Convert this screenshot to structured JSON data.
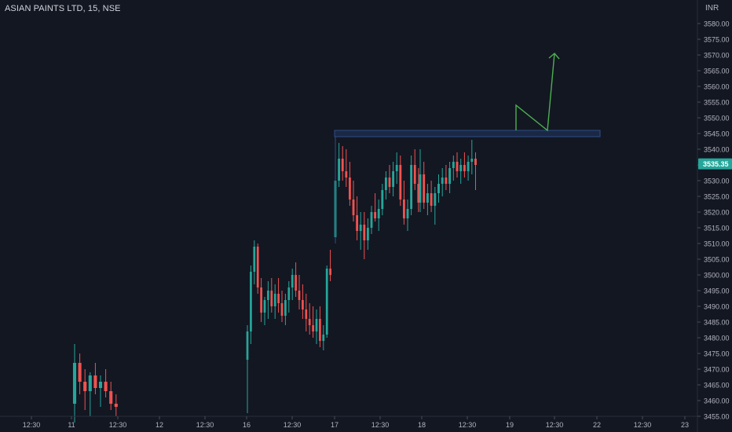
{
  "header": {
    "symbol": "ASIAN PAINTS LTD, 15, NSE",
    "currency": "INR"
  },
  "colors": {
    "background": "#131722",
    "up_candle": "#26a69a",
    "down_candle": "#ef5350",
    "zone_fill": "#1e2f52",
    "zone_border": "#2f4c85",
    "arrow": "#4caf50",
    "axis_text": "#b2b5be",
    "last_price_bg": "#26a69a"
  },
  "chart_data": {
    "type": "candlestick",
    "title": "ASIAN PAINTS LTD, 15, NSE",
    "ylabel": "INR",
    "ylim": [
      3453,
      3589
    ],
    "grid": false,
    "y_ticks": [
      "3455.00",
      "3460.00",
      "3465.00",
      "3470.00",
      "3475.00",
      "3480.00",
      "3485.00",
      "3490.00",
      "3495.00",
      "3500.00",
      "3505.00",
      "3510.00",
      "3515.00",
      "3520.00",
      "3525.00",
      "3530.00",
      "3535.00",
      "3540.00",
      "3545.00",
      "3550.00",
      "3555.00",
      "3560.00",
      "3565.00",
      "3570.00",
      "3575.00",
      "3580.00"
    ],
    "x_ticks": [
      "12:30",
      "11",
      "12:30",
      "12",
      "12:30",
      "16",
      "12:30",
      "17",
      "12:30",
      "18",
      "12:30",
      "19",
      "12:30",
      "22",
      "12:30",
      "23"
    ],
    "last_price": "3535.35",
    "zone": {
      "from": 3544,
      "to": 3546
    },
    "arrow_path": [
      [
        3545,
        3545
      ],
      [
        3545,
        3554
      ],
      [
        3545,
        3545
      ],
      [
        3570,
        3570
      ]
    ],
    "sessions": [
      {
        "day": "11",
        "candles": [
          [
            3459,
            3478,
            3453,
            3472
          ],
          [
            3472,
            3475,
            3462,
            3466
          ],
          [
            3466,
            3470,
            3457,
            3463
          ],
          [
            3463,
            3469,
            3455,
            3468
          ],
          [
            3468,
            3472,
            3462,
            3464
          ],
          [
            3464,
            3468,
            3458,
            3466
          ],
          [
            3466,
            3470,
            3461,
            3463
          ],
          [
            3463,
            3466,
            3457,
            3459
          ],
          [
            3459,
            3462,
            3455,
            3458
          ]
        ]
      },
      {
        "day": "16",
        "candles": [
          [
            3473,
            3484,
            3456,
            3482
          ],
          [
            3482,
            3503,
            3478,
            3501
          ],
          [
            3501,
            3511,
            3497,
            3509
          ],
          [
            3509,
            3510,
            3494,
            3496
          ],
          [
            3496,
            3499,
            3485,
            3488
          ],
          [
            3488,
            3493,
            3484,
            3492
          ],
          [
            3492,
            3498,
            3486,
            3495
          ],
          [
            3495,
            3499,
            3488,
            3490
          ],
          [
            3490,
            3497,
            3486,
            3494
          ],
          [
            3494,
            3499,
            3488,
            3491
          ],
          [
            3491,
            3495,
            3485,
            3487
          ],
          [
            3487,
            3494,
            3484,
            3492
          ],
          [
            3492,
            3498,
            3488,
            3496
          ],
          [
            3496,
            3502,
            3492,
            3500
          ],
          [
            3500,
            3504,
            3493,
            3495
          ],
          [
            3495,
            3500,
            3489,
            3492
          ],
          [
            3492,
            3497,
            3486,
            3489
          ],
          [
            3489,
            3494,
            3482,
            3486
          ],
          [
            3486,
            3491,
            3481,
            3484
          ],
          [
            3484,
            3490,
            3480,
            3482
          ],
          [
            3482,
            3489,
            3478,
            3486
          ],
          [
            3486,
            3490,
            3477,
            3479
          ],
          [
            3479,
            3484,
            3476,
            3481
          ],
          [
            3481,
            3503,
            3480,
            3502
          ],
          [
            3502,
            3508,
            3498,
            3500
          ]
        ]
      },
      {
        "day": "17",
        "candles": [
          [
            3512,
            3532,
            3510,
            3530
          ],
          [
            3530,
            3542,
            3528,
            3537
          ],
          [
            3537,
            3541,
            3530,
            3533
          ],
          [
            3533,
            3540,
            3528,
            3531
          ],
          [
            3531,
            3536,
            3522,
            3524
          ],
          [
            3524,
            3530,
            3517,
            3519
          ],
          [
            3519,
            3525,
            3511,
            3514
          ],
          [
            3514,
            3520,
            3508,
            3516
          ],
          [
            3516,
            3520,
            3505,
            3511
          ],
          [
            3511,
            3518,
            3508,
            3515
          ],
          [
            3515,
            3522,
            3513,
            3520
          ],
          [
            3520,
            3526,
            3517,
            3518
          ],
          [
            3518,
            3524,
            3514,
            3521
          ],
          [
            3521,
            3529,
            3519,
            3527
          ],
          [
            3527,
            3533,
            3524,
            3531
          ],
          [
            3531,
            3535,
            3526,
            3528
          ],
          [
            3528,
            3536,
            3525,
            3533
          ],
          [
            3533,
            3539,
            3529,
            3535
          ],
          [
            3535,
            3538,
            3522,
            3524
          ],
          [
            3524,
            3530,
            3516,
            3518
          ],
          [
            3518,
            3524,
            3514,
            3521
          ],
          [
            3521,
            3538,
            3519,
            3535
          ],
          [
            3535,
            3540,
            3527,
            3529
          ],
          [
            3529,
            3534,
            3520,
            3523
          ]
        ]
      },
      {
        "day": "18",
        "candles": [
          [
            3523,
            3540,
            3520,
            3532
          ],
          [
            3532,
            3536,
            3521,
            3523
          ],
          [
            3523,
            3529,
            3519,
            3526
          ],
          [
            3526,
            3530,
            3520,
            3522
          ],
          [
            3522,
            3528,
            3516,
            3526
          ],
          [
            3526,
            3532,
            3523,
            3529
          ],
          [
            3529,
            3534,
            3525,
            3531
          ],
          [
            3531,
            3535,
            3527,
            3529
          ],
          [
            3529,
            3536,
            3526,
            3534
          ],
          [
            3534,
            3538,
            3530,
            3536
          ],
          [
            3536,
            3539,
            3531,
            3533
          ],
          [
            3533,
            3537,
            3529,
            3535
          ],
          [
            3535,
            3539,
            3531,
            3533
          ],
          [
            3533,
            3538,
            3530,
            3536
          ],
          [
            3536,
            3543,
            3532,
            3537
          ],
          [
            3537,
            3539,
            3527,
            3535
          ]
        ]
      }
    ]
  }
}
